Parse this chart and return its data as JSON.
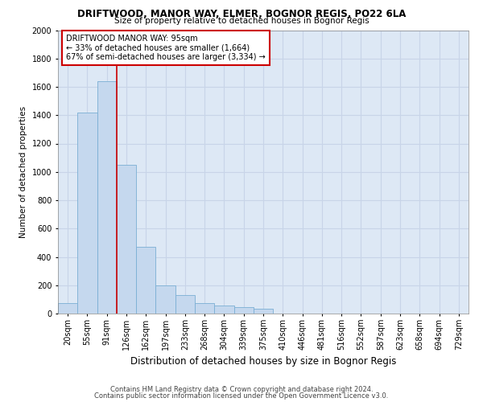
{
  "title1": "DRIFTWOOD, MANOR WAY, ELMER, BOGNOR REGIS, PO22 6LA",
  "title2": "Size of property relative to detached houses in Bognor Regis",
  "xlabel": "Distribution of detached houses by size in Bognor Regis",
  "ylabel": "Number of detached properties",
  "footnote1": "Contains HM Land Registry data © Crown copyright and database right 2024.",
  "footnote2": "Contains public sector information licensed under the Open Government Licence v3.0.",
  "annotation_line1": "DRIFTWOOD MANOR WAY: 95sqm",
  "annotation_line2": "← 33% of detached houses are smaller (1,664)",
  "annotation_line3": "67% of semi-detached houses are larger (3,334) →",
  "bar_categories": [
    "20sqm",
    "55sqm",
    "91sqm",
    "126sqm",
    "162sqm",
    "197sqm",
    "233sqm",
    "268sqm",
    "304sqm",
    "339sqm",
    "375sqm",
    "410sqm",
    "446sqm",
    "481sqm",
    "516sqm",
    "552sqm",
    "587sqm",
    "623sqm",
    "658sqm",
    "694sqm",
    "729sqm"
  ],
  "bar_values": [
    75,
    1420,
    1640,
    1050,
    470,
    200,
    130,
    75,
    55,
    45,
    35,
    0,
    0,
    0,
    0,
    0,
    0,
    0,
    0,
    0,
    0
  ],
  "bar_color": "#c5d8ee",
  "bar_edge_color": "#7aafd4",
  "vline_color": "#cc0000",
  "vline_x_index": 2,
  "ylim": [
    0,
    2000
  ],
  "yticks": [
    0,
    200,
    400,
    600,
    800,
    1000,
    1200,
    1400,
    1600,
    1800,
    2000
  ],
  "grid_color": "#c8d4e8",
  "background_color": "#dde8f5",
  "fig_background": "#ffffff",
  "annotation_box_color": "#ffffff",
  "annotation_border_color": "#cc0000"
}
